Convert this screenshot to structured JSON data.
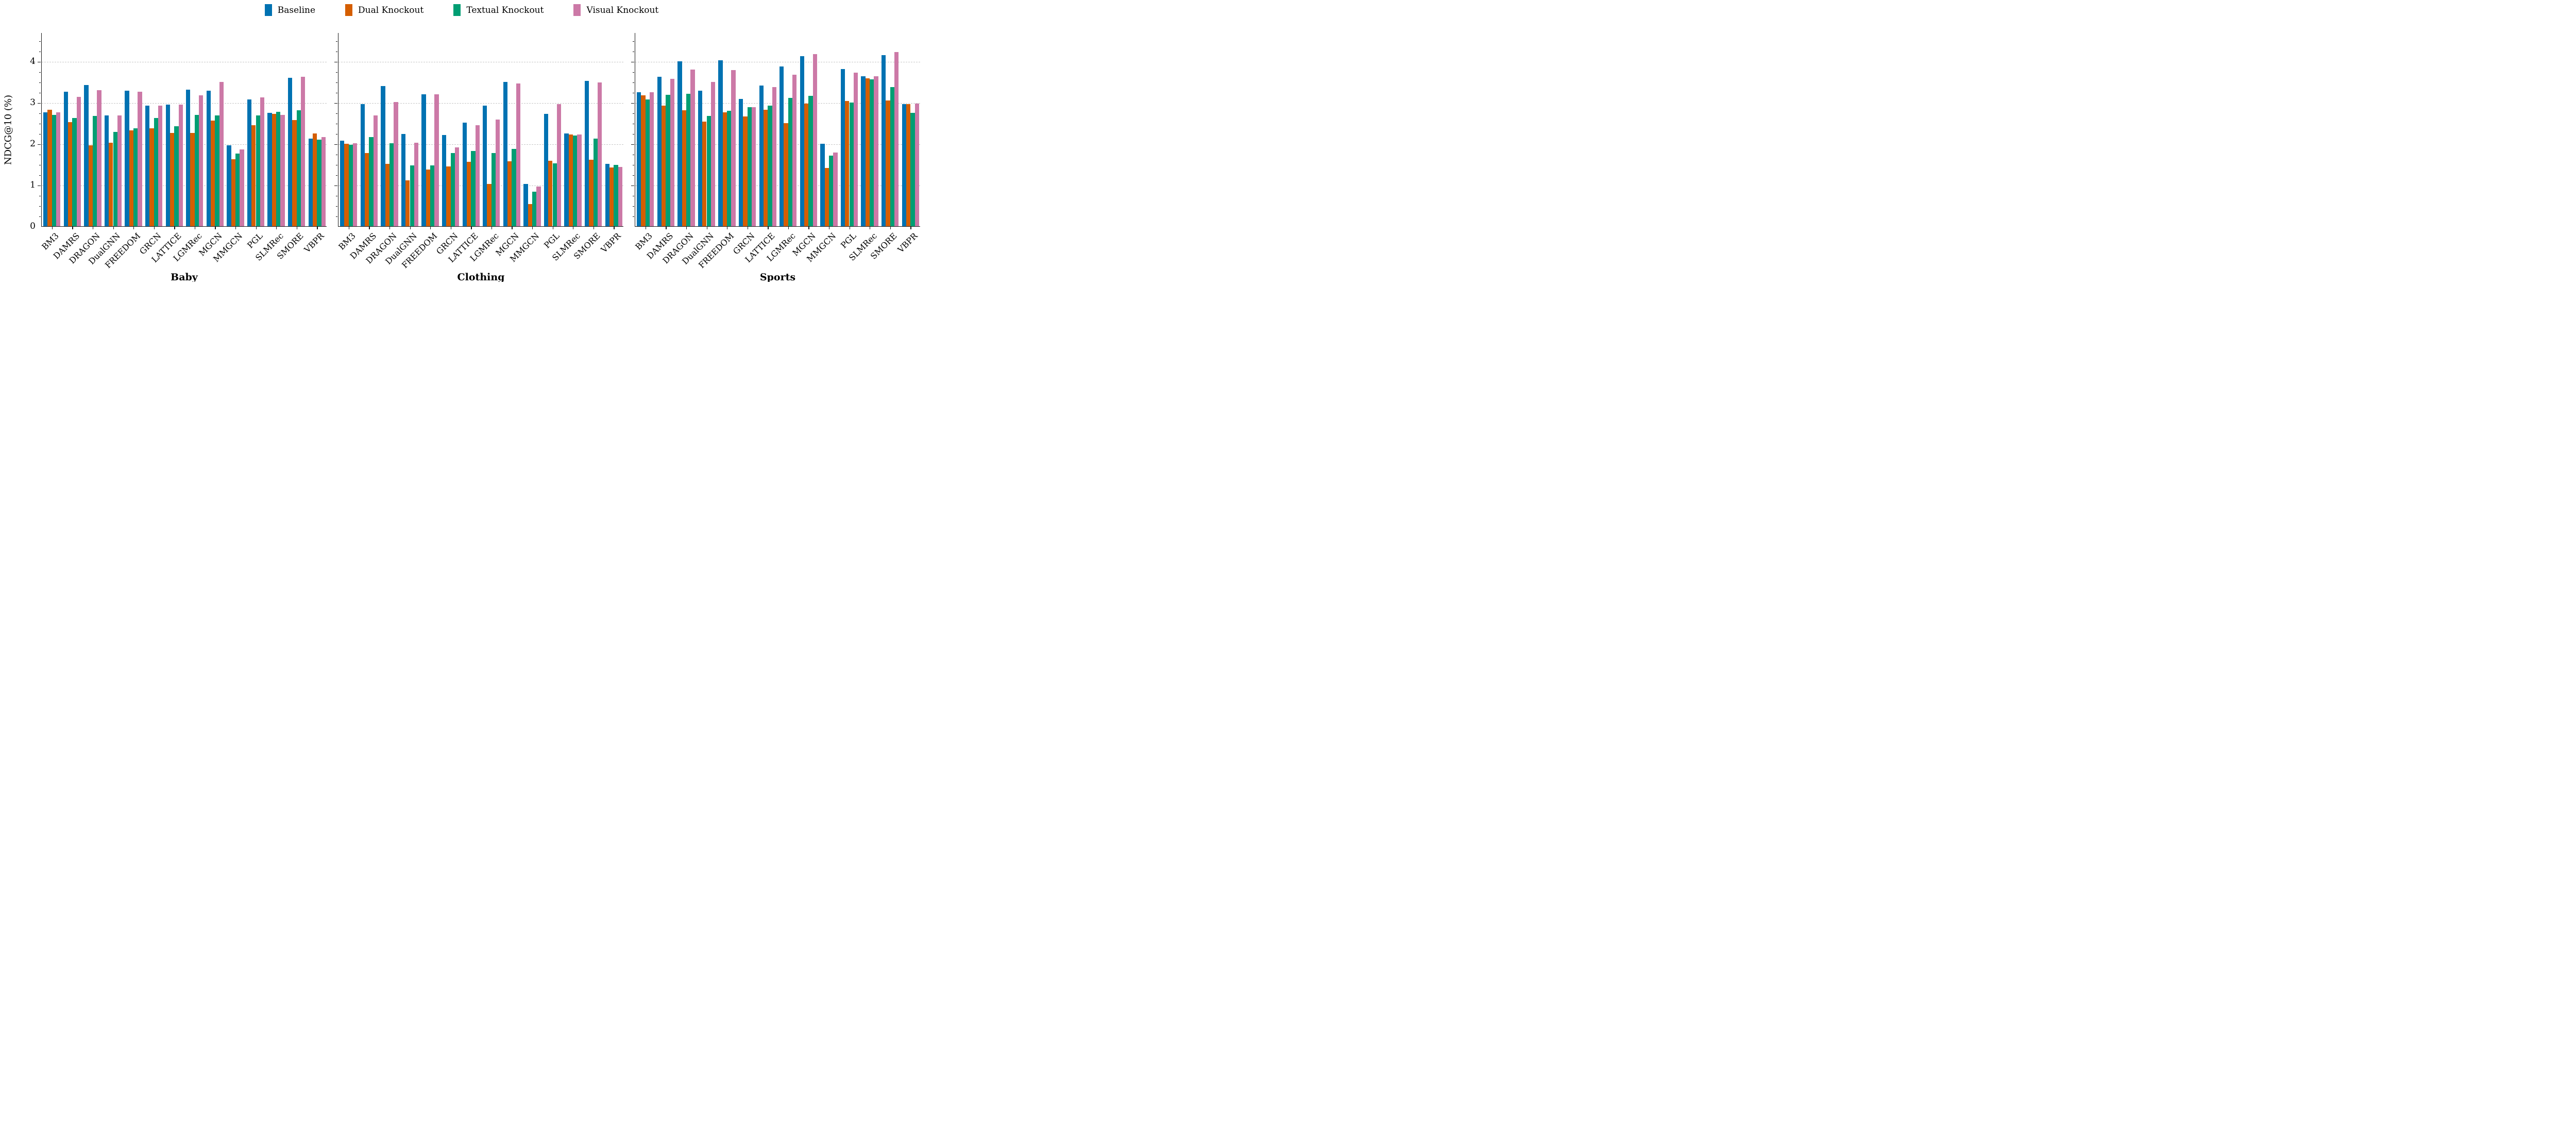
{
  "chart_data": {
    "type": "bar",
    "title": "",
    "ylabel": "NDCG@10 (%)",
    "xlabel": "",
    "ylim": [
      0,
      4.7
    ],
    "yticks": [
      0,
      1,
      2,
      3,
      4
    ],
    "minor_tick_step": 0.25,
    "grid": "horizontal-dashed",
    "legend_position": "top-center",
    "axis_color": "#1a1a1a",
    "grid_color": "#c6c6c6",
    "series_names": [
      "Baseline",
      "Dual Knockout",
      "Textual Knockout",
      "Visual Knockout"
    ],
    "series_colors": [
      "#0072B2",
      "#D55E00",
      "#009E73",
      "#CC79A7"
    ],
    "categories": [
      "BM3",
      "DAMRS",
      "DRAGON",
      "DualGNN",
      "FREEDOM",
      "GRCN",
      "LATTICE",
      "LGMRec",
      "MGCN",
      "MMGCN",
      "PGL",
      "SLMRec",
      "SMORE",
      "VBPR"
    ],
    "panels": [
      {
        "title": "Baby",
        "series": [
          {
            "name": "Baseline",
            "values": [
              2.76,
              3.26,
              3.42,
              2.69,
              3.29,
              2.92,
              2.95,
              3.31,
              3.29,
              1.96,
              3.07,
              2.75,
              3.6,
              2.12
            ]
          },
          {
            "name": "Dual Knockout",
            "values": [
              2.83,
              2.52,
              1.96,
              2.02,
              2.33,
              2.37,
              2.26,
              2.26,
              2.56,
              1.63,
              2.45,
              2.72,
              2.58,
              2.25
            ]
          },
          {
            "name": "Textual Knockout",
            "values": [
              2.7,
              2.63,
              2.67,
              2.29,
              2.37,
              2.62,
              2.43,
              2.7,
              2.69,
              1.76,
              2.69,
              2.78,
              2.81,
              2.1
            ]
          },
          {
            "name": "Visual Knockout",
            "values": [
              2.76,
              3.14,
              3.3,
              2.69,
              3.26,
              2.92,
              2.95,
              3.18,
              3.5,
              1.86,
              3.13,
              2.7,
              3.63,
              2.16
            ]
          }
        ]
      },
      {
        "title": "Clothing",
        "series": [
          {
            "name": "Baseline",
            "values": [
              2.08,
              2.96,
              3.4,
              2.24,
              3.2,
              2.21,
              2.51,
              2.93,
              3.5,
              1.02,
              2.72,
              2.25,
              3.52,
              1.51
            ]
          },
          {
            "name": "Dual Knockout",
            "values": [
              2.0,
              1.78,
              1.51,
              1.11,
              1.37,
              1.45,
              1.56,
              1.03,
              1.57,
              0.54,
              1.59,
              2.22,
              1.61,
              1.42
            ]
          },
          {
            "name": "Textual Knockout",
            "values": [
              1.97,
              2.16,
              2.01,
              1.48,
              1.48,
              1.77,
              1.83,
              1.77,
              1.88,
              0.84,
              1.53,
              2.2,
              2.13,
              1.49
            ]
          },
          {
            "name": "Visual Knockout",
            "values": [
              2.01,
              2.69,
              3.01,
              2.03,
              3.2,
              1.91,
              2.45,
              2.59,
              3.46,
              0.96,
              2.96,
              2.23,
              3.49,
              1.44
            ]
          }
        ]
      },
      {
        "title": "Sports",
        "series": [
          {
            "name": "Baseline",
            "values": [
              3.25,
              3.62,
              4.0,
              3.29,
              4.03,
              3.09,
              3.41,
              3.87,
              4.12,
              2.0,
              3.81,
              3.64,
              4.15,
              2.96
            ]
          },
          {
            "name": "Dual Knockout",
            "values": [
              3.17,
              2.92,
              2.81,
              2.54,
              2.76,
              2.66,
              2.82,
              2.5,
              2.97,
              1.41,
              3.04,
              3.59,
              3.05,
              2.96
            ]
          },
          {
            "name": "Textual Knockout",
            "values": [
              3.07,
              3.19,
              3.21,
              2.68,
              2.8,
              2.89,
              2.92,
              3.11,
              3.16,
              1.71,
              3.0,
              3.56,
              3.38,
              2.75
            ]
          },
          {
            "name": "Visual Knockout",
            "values": [
              3.25,
              3.57,
              3.8,
              3.5,
              3.79,
              2.89,
              3.38,
              3.67,
              4.18,
              1.79,
              3.72,
              3.64,
              4.22,
              2.97
            ]
          }
        ]
      }
    ]
  },
  "legend": {
    "items": [
      {
        "label": "Baseline",
        "color": "#0072B2"
      },
      {
        "label": "Dual Knockout",
        "color": "#D55E00"
      },
      {
        "label": "Textual Knockout",
        "color": "#009E73"
      },
      {
        "label": "Visual Knockout",
        "color": "#CC79A7"
      }
    ]
  },
  "y_axis": {
    "label": "NDCG@10 (%)"
  }
}
